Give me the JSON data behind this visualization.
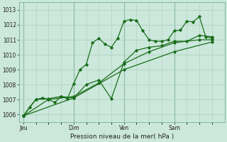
{
  "background_color": "#cce8dc",
  "grid_color": "#aaccbb",
  "line_color": "#1a6e1a",
  "marker_color": "#1a6e1a",
  "xlabel": "Pression niveau de la mer( hPa )",
  "ylim": [
    1005.5,
    1013.5
  ],
  "yticks": [
    1006,
    1007,
    1008,
    1009,
    1010,
    1011,
    1012,
    1013
  ],
  "day_labels": [
    "Jeu",
    "Dim",
    "Ven",
    "Sam"
  ],
  "day_positions": [
    0,
    48,
    96,
    144
  ],
  "xlim": [
    -4,
    192
  ],
  "s1x": [
    0,
    6,
    12,
    18,
    24,
    30,
    36,
    42,
    48,
    54,
    60,
    66,
    72,
    78,
    84,
    90,
    96,
    102,
    108,
    114,
    120,
    126,
    132,
    138,
    144,
    150,
    156,
    162,
    168,
    174,
    180
  ],
  "s1y": [
    1005.9,
    1006.5,
    1007.0,
    1007.1,
    1007.0,
    1006.8,
    1007.2,
    1007.05,
    1008.05,
    1009.0,
    1009.35,
    1010.8,
    1011.1,
    1010.7,
    1010.5,
    1011.1,
    1012.25,
    1012.35,
    1012.3,
    1011.6,
    1011.0,
    1010.9,
    1010.9,
    1011.0,
    1011.6,
    1011.65,
    1012.25,
    1012.2,
    1012.55,
    1011.2,
    1011.1
  ],
  "s2x": [
    0,
    12,
    24,
    36,
    48,
    60,
    72,
    84,
    96,
    108,
    120,
    132,
    144,
    156,
    168,
    180
  ],
  "s2y": [
    1005.9,
    1007.0,
    1007.05,
    1007.2,
    1007.1,
    1008.0,
    1008.3,
    1007.05,
    1009.5,
    1010.3,
    1010.5,
    1010.6,
    1010.9,
    1010.9,
    1011.3,
    1011.2
  ],
  "s3x": [
    0,
    24,
    48,
    72,
    96,
    120,
    144,
    168,
    180
  ],
  "s3y": [
    1005.9,
    1007.0,
    1007.2,
    1008.1,
    1009.4,
    1010.2,
    1010.8,
    1011.0,
    1011.0
  ],
  "s4x": [
    0,
    48,
    96,
    144,
    180
  ],
  "s4y": [
    1005.9,
    1007.1,
    1009.0,
    1010.2,
    1010.85
  ]
}
